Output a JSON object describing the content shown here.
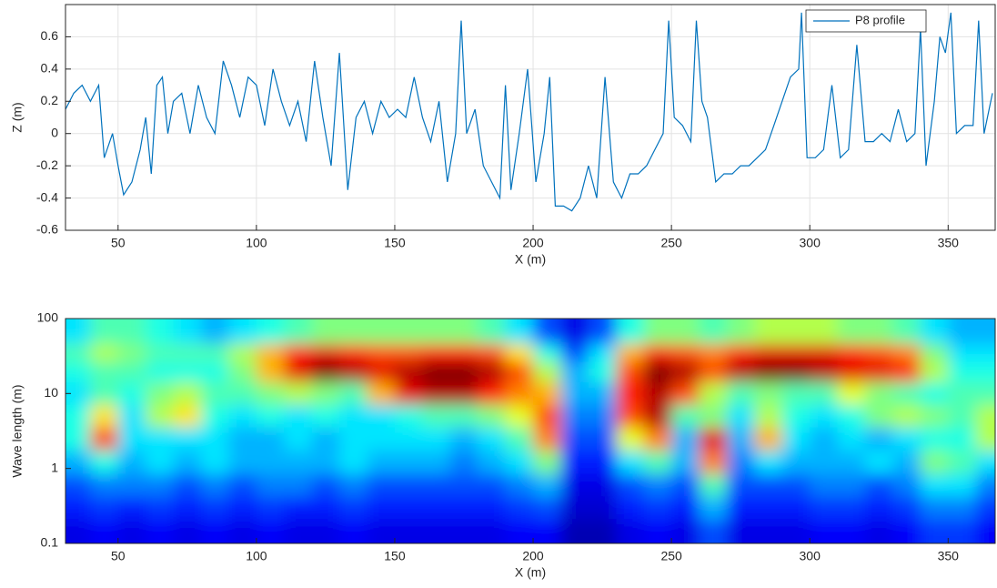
{
  "chart_data": [
    {
      "type": "line",
      "xlabel": "X (m)",
      "ylabel": "Z (m)",
      "xlim": [
        31,
        367
      ],
      "ylim": [
        -0.6,
        0.8
      ],
      "xticks": [
        50,
        100,
        150,
        200,
        250,
        300,
        350
      ],
      "yticks": [
        -0.6,
        -0.4,
        -0.2,
        0,
        0.2,
        0.4,
        0.6
      ],
      "grid": true,
      "legend": "upper right",
      "x": [
        31,
        34,
        37,
        40,
        43,
        45,
        48,
        50,
        52,
        55,
        58,
        60,
        62,
        64,
        66,
        68,
        70,
        73,
        76,
        79,
        82,
        85,
        88,
        91,
        94,
        97,
        100,
        103,
        106,
        109,
        112,
        115,
        118,
        121,
        124,
        127,
        130,
        133,
        136,
        139,
        142,
        145,
        148,
        151,
        154,
        157,
        160,
        163,
        166,
        169,
        172,
        174,
        176,
        179,
        182,
        185,
        188,
        190,
        192,
        195,
        198,
        201,
        204,
        206,
        208,
        211,
        214,
        217,
        220,
        223,
        226,
        229,
        232,
        235,
        238,
        241,
        244,
        247,
        249,
        251,
        254,
        257,
        259,
        261,
        263,
        266,
        269,
        272,
        275,
        278,
        281,
        284,
        287,
        290,
        293,
        296,
        297,
        299,
        302,
        305,
        308,
        311,
        314,
        317,
        320,
        323,
        326,
        329,
        332,
        335,
        338,
        340,
        342,
        345,
        347,
        349,
        351,
        353,
        356,
        359,
        361,
        363,
        366
      ],
      "series": [
        {
          "name": "P8 profile",
          "color": "#0072bd",
          "values": [
            0.15,
            0.25,
            0.3,
            0.2,
            0.3,
            -0.15,
            0.0,
            -0.2,
            -0.38,
            -0.3,
            -0.1,
            0.1,
            -0.25,
            0.3,
            0.35,
            0.0,
            0.2,
            0.25,
            0.0,
            0.3,
            0.1,
            0.0,
            0.45,
            0.3,
            0.1,
            0.35,
            0.3,
            0.05,
            0.4,
            0.2,
            0.05,
            0.2,
            -0.05,
            0.45,
            0.1,
            -0.2,
            0.5,
            -0.35,
            0.1,
            0.2,
            0.0,
            0.2,
            0.1,
            0.15,
            0.1,
            0.35,
            0.1,
            -0.05,
            0.2,
            -0.3,
            0.0,
            0.7,
            0.0,
            0.15,
            -0.2,
            -0.3,
            -0.4,
            0.3,
            -0.35,
            0.0,
            0.4,
            -0.3,
            0.0,
            0.35,
            -0.45,
            -0.45,
            -0.48,
            -0.4,
            -0.2,
            -0.4,
            0.35,
            -0.3,
            -0.4,
            -0.25,
            -0.25,
            -0.2,
            -0.1,
            0.0,
            0.7,
            0.1,
            0.05,
            -0.05,
            0.7,
            0.2,
            0.1,
            -0.3,
            -0.25,
            -0.25,
            -0.2,
            -0.2,
            -0.15,
            -0.1,
            0.05,
            0.2,
            0.35,
            0.4,
            0.75,
            -0.15,
            -0.15,
            -0.1,
            0.3,
            -0.15,
            -0.1,
            0.55,
            -0.05,
            -0.05,
            0.0,
            -0.05,
            0.15,
            -0.05,
            0.0,
            0.65,
            -0.2,
            0.2,
            0.6,
            0.5,
            0.75,
            0.0,
            0.05,
            0.05,
            0.7,
            0.0,
            0.25
          ]
        }
      ]
    },
    {
      "type": "heatmap",
      "xlabel": "X (m)",
      "ylabel": "Wave length (m)",
      "xlim": [
        31,
        367
      ],
      "ylim": [
        0.1,
        100
      ],
      "log_y": true,
      "colormap": "jet",
      "xticks": [
        50,
        100,
        150,
        200,
        250,
        300,
        350
      ],
      "yticks": [
        0.1,
        1,
        10,
        100
      ],
      "x": [
        35,
        45,
        55,
        65,
        75,
        85,
        95,
        105,
        115,
        125,
        135,
        145,
        155,
        165,
        175,
        185,
        195,
        205,
        215,
        225,
        235,
        245,
        255,
        265,
        275,
        285,
        295,
        305,
        315,
        325,
        335,
        345,
        355,
        365
      ],
      "y": [
        60,
        35,
        20,
        10,
        5,
        2.5,
        1.2,
        0.6,
        0.3,
        0.15
      ],
      "z": [
        [
          0.35,
          0.45,
          0.45,
          0.4,
          0.35,
          0.3,
          0.35,
          0.4,
          0.45,
          0.5,
          0.5,
          0.5,
          0.5,
          0.5,
          0.5,
          0.45,
          0.35,
          0.2,
          0.1,
          0.2,
          0.4,
          0.5,
          0.5,
          0.45,
          0.5,
          0.55,
          0.55,
          0.55,
          0.5,
          0.5,
          0.45,
          0.35,
          0.3,
          0.3
        ],
        [
          0.45,
          0.55,
          0.5,
          0.45,
          0.45,
          0.45,
          0.55,
          0.7,
          0.85,
          0.9,
          0.85,
          0.8,
          0.8,
          0.85,
          0.85,
          0.8,
          0.65,
          0.4,
          0.2,
          0.35,
          0.7,
          0.85,
          0.8,
          0.75,
          0.85,
          0.9,
          0.9,
          0.9,
          0.85,
          0.8,
          0.75,
          0.5,
          0.35,
          0.35
        ],
        [
          0.4,
          0.45,
          0.45,
          0.4,
          0.4,
          0.4,
          0.5,
          0.7,
          0.9,
          1,
          0.95,
          0.9,
          0.95,
          1,
          1,
          0.95,
          0.8,
          0.55,
          0.3,
          0.4,
          0.8,
          1,
          0.95,
          0.8,
          0.95,
          1,
          1,
          0.95,
          0.9,
          0.9,
          0.85,
          0.55,
          0.4,
          0.4
        ],
        [
          0.35,
          0.45,
          0.4,
          0.5,
          0.55,
          0.45,
          0.45,
          0.5,
          0.55,
          0.5,
          0.45,
          0.7,
          0.9,
          0.95,
          0.95,
          0.85,
          0.75,
          0.7,
          0.3,
          0.3,
          0.85,
          0.95,
          0.8,
          0.55,
          0.45,
          0.5,
          0.45,
          0.45,
          0.6,
          0.5,
          0.45,
          0.4,
          0.45,
          0.45
        ],
        [
          0.4,
          0.65,
          0.35,
          0.55,
          0.65,
          0.4,
          0.35,
          0.4,
          0.35,
          0.4,
          0.35,
          0.35,
          0.4,
          0.45,
          0.45,
          0.5,
          0.6,
          0.8,
          0.25,
          0.25,
          0.8,
          0.95,
          0.45,
          0.5,
          0.35,
          0.55,
          0.4,
          0.35,
          0.4,
          0.5,
          0.55,
          0.5,
          0.45,
          0.55
        ],
        [
          0.4,
          0.8,
          0.35,
          0.35,
          0.35,
          0.35,
          0.3,
          0.3,
          0.35,
          0.3,
          0.35,
          0.35,
          0.35,
          0.35,
          0.3,
          0.35,
          0.45,
          0.75,
          0.2,
          0.2,
          0.6,
          0.75,
          0.3,
          0.9,
          0.3,
          0.7,
          0.35,
          0.3,
          0.35,
          0.3,
          0.35,
          0.4,
          0.4,
          0.55
        ],
        [
          0.3,
          0.4,
          0.3,
          0.35,
          0.3,
          0.35,
          0.3,
          0.3,
          0.3,
          0.3,
          0.35,
          0.3,
          0.3,
          0.3,
          0.25,
          0.3,
          0.35,
          0.5,
          0.15,
          0.15,
          0.35,
          0.45,
          0.3,
          0.75,
          0.25,
          0.35,
          0.3,
          0.3,
          0.3,
          0.35,
          0.3,
          0.5,
          0.45,
          0.35
        ],
        [
          0.2,
          0.25,
          0.25,
          0.25,
          0.2,
          0.25,
          0.2,
          0.25,
          0.25,
          0.2,
          0.25,
          0.2,
          0.2,
          0.2,
          0.2,
          0.2,
          0.25,
          0.3,
          0.1,
          0.1,
          0.2,
          0.25,
          0.2,
          0.45,
          0.2,
          0.2,
          0.2,
          0.25,
          0.25,
          0.2,
          0.25,
          0.35,
          0.35,
          0.25
        ],
        [
          0.15,
          0.18,
          0.15,
          0.18,
          0.15,
          0.18,
          0.15,
          0.18,
          0.15,
          0.15,
          0.18,
          0.15,
          0.15,
          0.15,
          0.15,
          0.15,
          0.18,
          0.2,
          0.08,
          0.08,
          0.15,
          0.18,
          0.15,
          0.3,
          0.15,
          0.15,
          0.15,
          0.18,
          0.18,
          0.15,
          0.18,
          0.25,
          0.25,
          0.18
        ],
        [
          0.1,
          0.12,
          0.1,
          0.12,
          0.1,
          0.12,
          0.1,
          0.12,
          0.1,
          0.1,
          0.12,
          0.1,
          0.1,
          0.1,
          0.1,
          0.1,
          0.12,
          0.12,
          0.05,
          0.05,
          0.1,
          0.12,
          0.1,
          0.2,
          0.1,
          0.1,
          0.1,
          0.12,
          0.12,
          0.1,
          0.12,
          0.18,
          0.18,
          0.12
        ]
      ]
    }
  ]
}
